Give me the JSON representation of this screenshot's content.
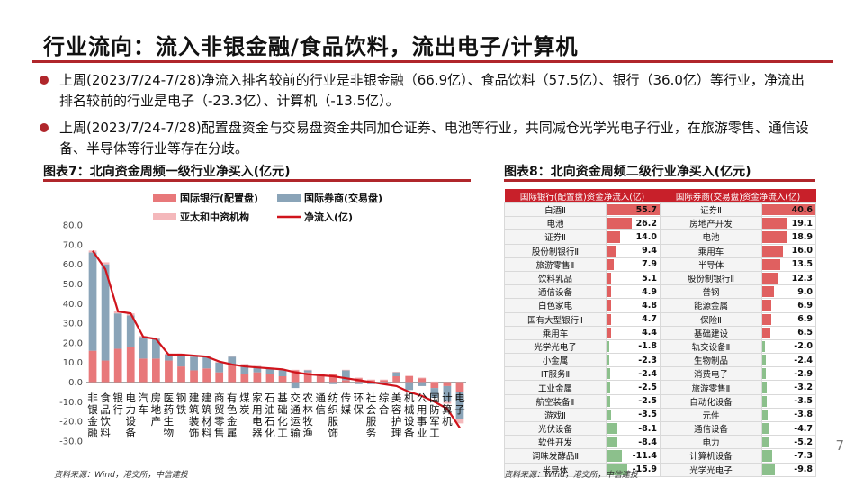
{
  "slide": {
    "title": "行业流向：流入非银金融/食品饮料，流出电子/计算机",
    "bullets": [
      "上周(2023/7/24-7/28)净流入排名较前的行业是非银金融（66.9亿）、食品饮料（57.5亿）、银行（36.0亿）等行业，净流出排名较前的行业是电子（-23.3亿）、计算机（-13.5亿）。",
      "上周(2023/7/24-7/28)配置盘资金与交易盘资金共同加仓证券、电池等行业，共同减仓光学光电子行业，在旅游零售、通信设备、半导体等行业等存在分歧。"
    ],
    "caption_left": "图表7：北向资金周频一级行业净买入(亿元)",
    "caption_right": "图表8：北向资金周频二级行业净买入(亿元)",
    "source_left": "资料来源：Wind，港交所，中信建投",
    "source_right": "资料来源：Wind，港交所，中信建投",
    "page_number": "7",
    "colors": {
      "accent": "#b0262b",
      "allocation": "#e8787a",
      "trading": "#8aa4b8",
      "other": "#f4b8bb",
      "net_line": "#d0141c",
      "table_pos": "#e06060",
      "table_neg": "#8cc08c"
    }
  },
  "chart_data": [
    {
      "type": "bar",
      "stacked": true,
      "ylim": [
        -30,
        80
      ],
      "yticks": [
        "80.0",
        "70.0",
        "60.0",
        "50.0",
        "40.0",
        "30.0",
        "20.0",
        "10.0",
        "0.0",
        "-10.0",
        "-20.0",
        "-30.0"
      ],
      "categories": [
        "非银金融",
        "食品饮料",
        "银行",
        "电力设备",
        "汽车",
        "房地产",
        "医药生物",
        "钢铁",
        "建筑装饰",
        "建筑材料",
        "商贸零售",
        "有色金属",
        "煤炭",
        "家用电器",
        "石油石化",
        "基础化工",
        "交通运输",
        "农林牧渔",
        "通信",
        "纺织服饰",
        "传媒",
        "环保",
        "社会服务",
        "综合",
        "美容护理",
        "机械设备",
        "公用事业",
        "国防军工",
        "计算机",
        "电子"
      ],
      "category_labels": [
        [
          "非",
          "银",
          "金",
          "融"
        ],
        [
          "食",
          "品",
          "饮",
          "料"
        ],
        [
          "银",
          "行"
        ],
        [
          "电",
          "力",
          "设",
          "备"
        ],
        [
          "汽",
          "车"
        ],
        [
          "房",
          "地",
          "产"
        ],
        [
          "医",
          "药",
          "生",
          "物"
        ],
        [
          "钢",
          "铁"
        ],
        [
          "建",
          "筑",
          "装",
          "饰"
        ],
        [
          "建",
          "筑",
          "材",
          "料"
        ],
        [
          "商",
          "贸",
          "零",
          "售"
        ],
        [
          "有",
          "色",
          "金",
          "属"
        ],
        [
          "煤",
          "炭"
        ],
        [
          "家",
          "用",
          "电",
          "器"
        ],
        [
          "石",
          "油",
          "石",
          "化"
        ],
        [
          "基",
          "础",
          "化",
          "工"
        ],
        [
          "交",
          "通",
          "运",
          "输"
        ],
        [
          "农",
          "林",
          "牧",
          "渔"
        ],
        [
          "通",
          "信"
        ],
        [
          "纺",
          "织",
          "服",
          "饰"
        ],
        [
          "传",
          "媒"
        ],
        [
          "环",
          "保"
        ],
        [
          "社",
          "会",
          "服",
          "务"
        ],
        [
          "综",
          "合"
        ],
        [
          "美",
          "容",
          "护",
          "理"
        ],
        [
          "机",
          "械",
          "设",
          "备"
        ],
        [
          "公",
          "用",
          "事",
          "业"
        ],
        [
          "国",
          "防",
          "军",
          "工"
        ],
        [
          "计",
          "算",
          "机"
        ],
        [
          "电",
          "子"
        ]
      ],
      "series": [
        {
          "name": "国际银行(配置盘)",
          "values": [
            16,
            11,
            17,
            18,
            12,
            12,
            11,
            8,
            6,
            7,
            5,
            9,
            4,
            5,
            4,
            3,
            6,
            5,
            3,
            4,
            1,
            2,
            1,
            1,
            3,
            3,
            2,
            -3,
            -2,
            -5
          ]
        },
        {
          "name": "国际券商(交易盘)",
          "values": [
            50,
            49,
            18,
            16,
            11,
            10,
            3,
            6,
            7,
            6,
            5,
            4,
            5,
            3,
            3,
            3,
            -3,
            1,
            1,
            -1,
            5,
            -1,
            -1,
            -1,
            2,
            -4,
            -2,
            -5,
            -8,
            -14
          ]
        },
        {
          "name": "亚太和中资机构",
          "values": [
            1,
            1,
            1,
            1,
            0.5,
            0.5,
            0.5,
            0.5,
            0.5,
            0.3,
            0.3,
            0.3,
            0.3,
            0.3,
            0.3,
            0.3,
            0.3,
            0.3,
            0.3,
            0.3,
            0.3,
            0.3,
            0.3,
            0.3,
            0.3,
            0.3,
            0.3,
            0.3,
            -1,
            -2
          ]
        }
      ],
      "line": {
        "name": "净流入(亿)",
        "values": [
          66.9,
          57.5,
          36.0,
          35.0,
          23.0,
          22.0,
          14.0,
          14.0,
          13.5,
          13.0,
          10.5,
          9.0,
          8.0,
          7.5,
          7.0,
          6.5,
          5.0,
          4.0,
          3.5,
          3.0,
          2.0,
          1.0,
          0.0,
          -1.0,
          -2.0,
          -5.0,
          -7.0,
          -10.0,
          -13.5,
          -23.3
        ]
      },
      "legend_position": "top"
    },
    {
      "type": "table",
      "headers": [
        "国际银行(配置盘)资金净流入(亿)",
        "国际券商(交易盘)资金净流入(亿)"
      ],
      "rows": [
        [
          "白酒Ⅱ",
          "55.7",
          "证券Ⅱ",
          "40.6"
        ],
        [
          "电池",
          "26.2",
          "房地产开发",
          "19.1"
        ],
        [
          "证券Ⅱ",
          "14.0",
          "电池",
          "18.9"
        ],
        [
          "股份制银行Ⅱ",
          "9.4",
          "乘用车",
          "16.0"
        ],
        [
          "旅游零售Ⅱ",
          "7.9",
          "半导体",
          "13.5"
        ],
        [
          "饮料乳品",
          "5.1",
          "股份制银行Ⅱ",
          "12.3"
        ],
        [
          "通信设备",
          "4.9",
          "普钢",
          "9.0"
        ],
        [
          "白色家电",
          "4.8",
          "能源金属",
          "6.9"
        ],
        [
          "国有大型银行Ⅱ",
          "4.7",
          "保险Ⅱ",
          "6.9"
        ],
        [
          "乘用车",
          "4.4",
          "基础建设",
          "6.5"
        ],
        [
          "光学光电子",
          "-1.8",
          "轨交设备Ⅱ",
          "-2.0"
        ],
        [
          "小金属",
          "-2.3",
          "生物制品",
          "-2.4"
        ],
        [
          "IT服务Ⅱ",
          "-2.4",
          "消费电子",
          "-2.9"
        ],
        [
          "工业金属",
          "-2.5",
          "旅游零售Ⅱ",
          "-3.2"
        ],
        [
          "航空装备Ⅱ",
          "-2.5",
          "自动化设备",
          "-3.5"
        ],
        [
          "游戏Ⅱ",
          "-3.5",
          "元件",
          "-3.8"
        ],
        [
          "光伏设备",
          "-8.1",
          "通信设备",
          "-4.7"
        ],
        [
          "软件开发",
          "-8.4",
          "电力",
          "-5.2"
        ],
        [
          "调味发酵品Ⅱ",
          "-11.4",
          "计算机设备",
          "-7.3"
        ],
        [
          "半导体",
          "-15.9",
          "光学光电子",
          "-9.8"
        ]
      ]
    }
  ]
}
